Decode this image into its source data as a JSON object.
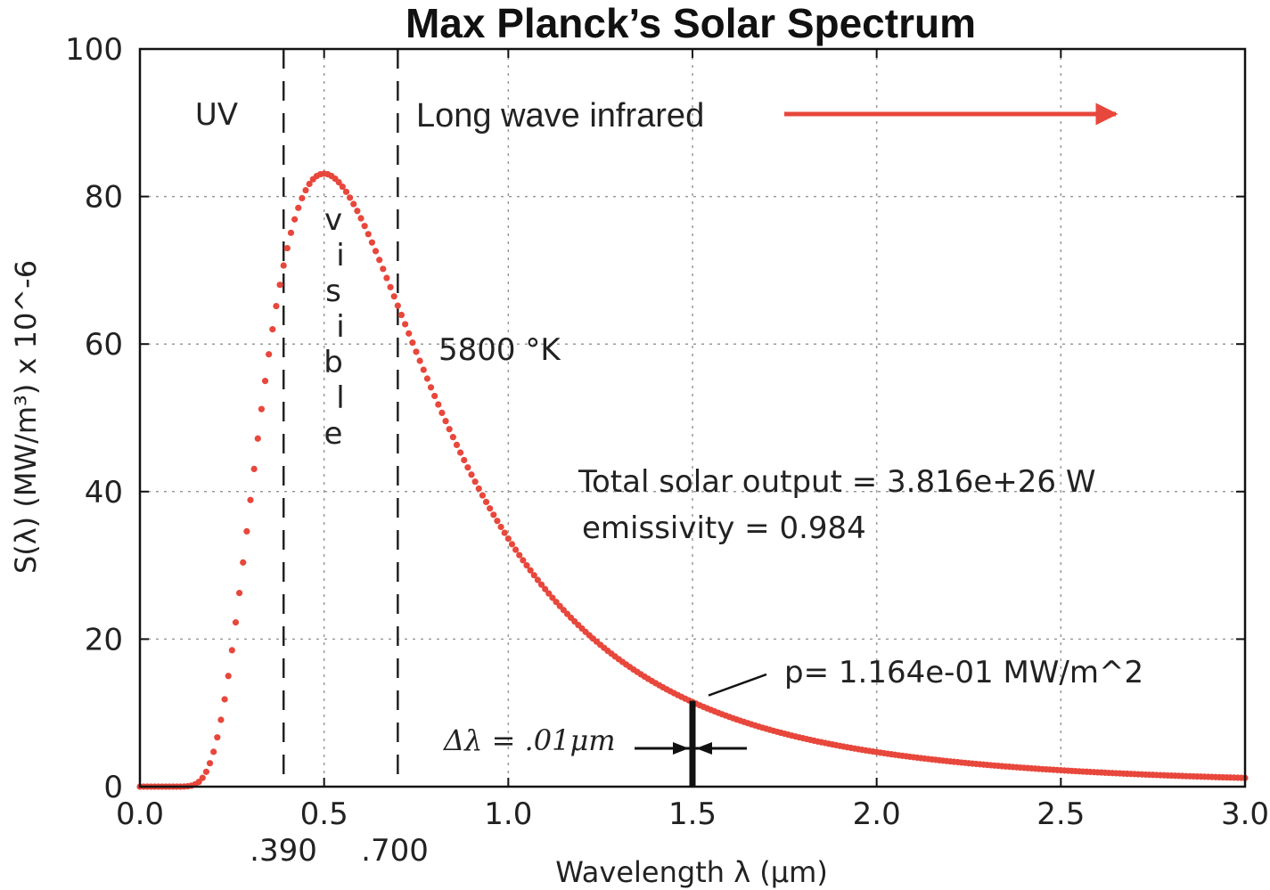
{
  "chart_data": {
    "type": "scatter",
    "title": "Max Planck’s Solar Spectrum",
    "xlabel": "Wavelength λ (μm)",
    "ylabel": "S(λ) (MW/m³) x 10^-6",
    "xlim": [
      0.0,
      3.0
    ],
    "ylim": [
      0,
      100
    ],
    "xticks": [
      "0.0",
      "0.5",
      "1.0",
      "1.5",
      "2.0",
      "2.5",
      "3.0"
    ],
    "yticks": [
      "0",
      "20",
      "40",
      "60",
      "80",
      "100"
    ],
    "grid": true,
    "series": [
      {
        "color": "#e8473c",
        "temperature_K": 5800,
        "wavelength_step_um": 0.01
      }
    ],
    "vlines": [
      {
        "x": 0.39,
        "label": ".390"
      },
      {
        "x": 0.7,
        "label": ".700"
      }
    ],
    "annotations": {
      "uv": "UV",
      "visible_letters": [
        "v",
        "i",
        "s",
        "i",
        "b",
        "l",
        "e"
      ],
      "longwave": "Long wave infrared",
      "temperature": "5800 °K",
      "total_output": "Total solar output = 3.816e+26    W",
      "emissivity": "emissivity =  0.984",
      "power": "p= 1.164e-01  MW/m^2",
      "delta": "Δλ = .01μm",
      "marker_x": 1.5,
      "marker_y": 11.64
    }
  }
}
